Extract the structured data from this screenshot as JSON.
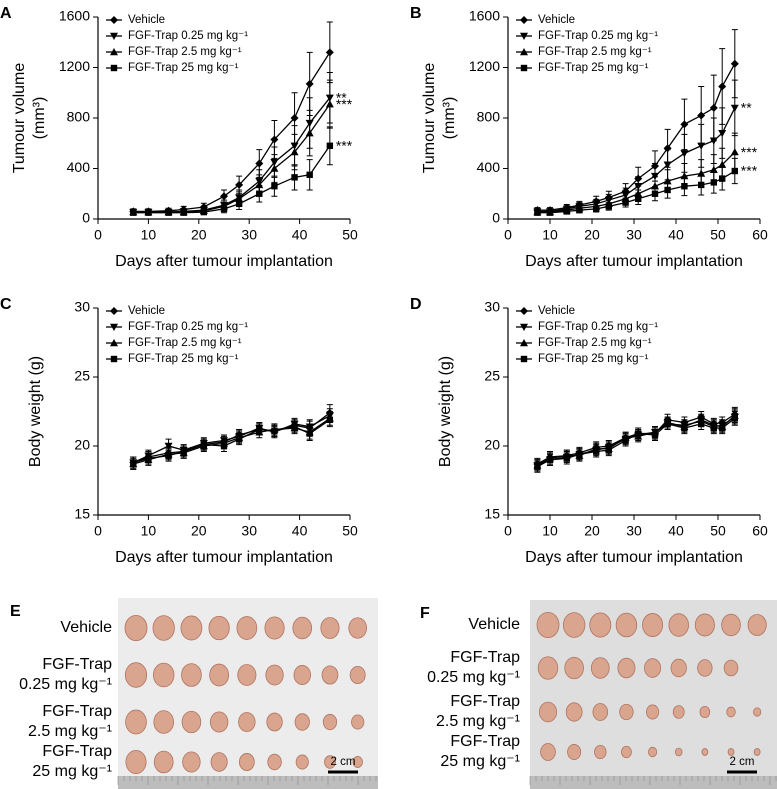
{
  "chart_data": [
    {
      "type": "line",
      "label": "A",
      "xlabel": "Days after tumour implantation",
      "ylabel": [
        "Tumour volume",
        "(mm³)"
      ],
      "x": [
        7,
        10,
        14,
        17,
        21,
        25,
        28,
        32,
        35,
        39,
        42,
        46
      ],
      "xlim": [
        0,
        50
      ],
      "xticks": [
        0,
        10,
        20,
        30,
        40,
        50
      ],
      "ylim": [
        0,
        1600
      ],
      "yticks": [
        0,
        400,
        800,
        1200,
        1600
      ],
      "series": [
        {
          "name": "Vehicle",
          "marker": "diamond",
          "color": "#000000",
          "values": [
            60,
            60,
            65,
            75,
            95,
            180,
            270,
            440,
            630,
            800,
            1070,
            1320
          ],
          "errors": [
            20,
            20,
            20,
            25,
            30,
            50,
            70,
            110,
            150,
            200,
            250,
            240
          ]
        },
        {
          "name": "FGF-Trap 0.25 mg kg⁻¹",
          "marker": "triangle-down",
          "color": "#000000",
          "values": [
            55,
            55,
            55,
            60,
            70,
            110,
            170,
            300,
            450,
            580,
            760,
            960
          ],
          "errors": [
            15,
            15,
            15,
            20,
            25,
            40,
            60,
            90,
            120,
            160,
            200,
            200
          ]
        },
        {
          "name": "FGF-Trap 2.5 mg kg⁻¹",
          "marker": "triangle-up",
          "color": "#000000",
          "values": [
            55,
            55,
            55,
            55,
            65,
            100,
            160,
            270,
            400,
            530,
            680,
            910
          ],
          "errors": [
            15,
            15,
            15,
            15,
            20,
            35,
            55,
            80,
            110,
            140,
            180,
            190
          ]
        },
        {
          "name": "FGF-Trap 25 mg kg⁻¹",
          "marker": "square",
          "color": "#000000",
          "values": [
            50,
            50,
            50,
            50,
            55,
            80,
            120,
            200,
            260,
            330,
            350,
            580
          ],
          "errors": [
            15,
            15,
            15,
            15,
            20,
            30,
            45,
            65,
            80,
            100,
            120,
            150
          ]
        }
      ],
      "end_labels": [
        null,
        "**",
        "***",
        "***"
      ]
    },
    {
      "type": "line",
      "label": "B",
      "xlabel": "Days after tumour implantation",
      "ylabel": [
        "Tumour volume",
        "(mm³)"
      ],
      "x": [
        7,
        10,
        14,
        17,
        21,
        24,
        28,
        31,
        35,
        38,
        42,
        46,
        49,
        51,
        54
      ],
      "xlim": [
        0,
        60
      ],
      "xticks": [
        0,
        10,
        20,
        30,
        40,
        50,
        60
      ],
      "ylim": [
        0,
        1600
      ],
      "yticks": [
        0,
        400,
        800,
        1200,
        1600
      ],
      "series": [
        {
          "name": "Vehicle",
          "marker": "diamond",
          "color": "#000000",
          "values": [
            70,
            70,
            90,
            110,
            140,
            170,
            220,
            320,
            420,
            560,
            750,
            820,
            880,
            1050,
            1230
          ],
          "errors": [
            20,
            20,
            25,
            30,
            40,
            50,
            60,
            90,
            120,
            150,
            200,
            230,
            260,
            300,
            270
          ]
        },
        {
          "name": "FGF-Trap 0.25 mg kg⁻¹",
          "marker": "triangle-down",
          "color": "#000000",
          "values": [
            60,
            60,
            80,
            100,
            120,
            150,
            190,
            260,
            340,
            430,
            520,
            580,
            620,
            680,
            880
          ],
          "errors": [
            20,
            20,
            25,
            30,
            35,
            45,
            55,
            75,
            100,
            120,
            150,
            170,
            180,
            200,
            220
          ]
        },
        {
          "name": "FGF-Trap 2.5 mg kg⁻¹",
          "marker": "triangle-up",
          "color": "#000000",
          "values": [
            55,
            55,
            70,
            85,
            100,
            120,
            160,
            200,
            260,
            300,
            340,
            360,
            390,
            430,
            530
          ],
          "errors": [
            15,
            15,
            20,
            25,
            30,
            35,
            45,
            60,
            75,
            90,
            100,
            110,
            120,
            130,
            150
          ]
        },
        {
          "name": "FGF-Trap 25 mg kg⁻¹",
          "marker": "square",
          "color": "#000000",
          "values": [
            50,
            50,
            60,
            70,
            80,
            100,
            130,
            160,
            200,
            230,
            260,
            270,
            290,
            320,
            380
          ],
          "errors": [
            15,
            15,
            20,
            20,
            25,
            30,
            35,
            45,
            55,
            65,
            75,
            80,
            85,
            90,
            100
          ]
        }
      ],
      "end_labels": [
        null,
        "**",
        "***",
        "***"
      ]
    },
    {
      "type": "line",
      "label": "C",
      "xlabel": "Days after tumour implantation",
      "ylabel": "Body weight (g)",
      "x": [
        7,
        10,
        14,
        17,
        21,
        25,
        28,
        32,
        35,
        39,
        42,
        46
      ],
      "xlim": [
        0,
        50
      ],
      "xticks": [
        0,
        10,
        20,
        30,
        40,
        50
      ],
      "ylim": [
        15,
        30
      ],
      "yticks": [
        15,
        20,
        25,
        30
      ],
      "series": [
        {
          "name": "Vehicle",
          "marker": "diamond",
          "color": "#000000",
          "values": [
            18.8,
            19.2,
            19.5,
            19.6,
            20.1,
            20.3,
            20.8,
            21.2,
            21.1,
            21.5,
            21.3,
            22.4
          ],
          "errors": [
            0.4,
            0.4,
            0.4,
            0.4,
            0.4,
            0.4,
            0.4,
            0.4,
            0.4,
            0.4,
            0.5,
            0.6
          ]
        },
        {
          "name": "FGF-Trap 0.25 mg kg⁻¹",
          "marker": "triangle-down",
          "color": "#000000",
          "values": [
            18.8,
            19.3,
            20.0,
            19.7,
            20.2,
            20.4,
            20.7,
            21.3,
            21.0,
            21.6,
            21.4,
            22.2
          ],
          "errors": [
            0.4,
            0.4,
            0.5,
            0.4,
            0.4,
            0.4,
            0.4,
            0.4,
            0.4,
            0.4,
            0.5,
            0.5
          ]
        },
        {
          "name": "FGF-Trap 2.5 mg kg⁻¹",
          "marker": "triangle-up",
          "color": "#000000",
          "values": [
            18.7,
            19.0,
            19.4,
            19.5,
            20.0,
            20.2,
            20.6,
            21.0,
            21.2,
            21.3,
            21.0,
            22.0
          ],
          "errors": [
            0.4,
            0.4,
            0.4,
            0.4,
            0.4,
            0.4,
            0.4,
            0.4,
            0.4,
            0.4,
            0.5,
            0.5
          ]
        },
        {
          "name": "FGF-Trap 25 mg kg⁻¹",
          "marker": "square",
          "color": "#000000",
          "values": [
            18.8,
            19.1,
            19.3,
            19.6,
            20.1,
            20.0,
            20.5,
            21.2,
            21.1,
            21.4,
            20.9,
            21.9
          ],
          "errors": [
            0.4,
            0.4,
            0.4,
            0.4,
            0.4,
            0.4,
            0.4,
            0.4,
            0.4,
            0.4,
            0.5,
            0.5
          ]
        }
      ]
    },
    {
      "type": "line",
      "label": "D",
      "xlabel": "Days after tumour implantation",
      "ylabel": "Body weight (g)",
      "x": [
        7,
        10,
        14,
        17,
        21,
        24,
        28,
        31,
        35,
        38,
        42,
        46,
        49,
        51,
        54
      ],
      "xlim": [
        0,
        60
      ],
      "xticks": [
        0,
        10,
        20,
        30,
        40,
        50,
        60
      ],
      "ylim": [
        15,
        30
      ],
      "yticks": [
        15,
        20,
        25,
        30
      ],
      "series": [
        {
          "name": "Vehicle",
          "marker": "diamond",
          "color": "#000000",
          "values": [
            18.7,
            19.2,
            19.3,
            19.5,
            19.9,
            20.0,
            20.6,
            20.9,
            20.9,
            21.9,
            21.7,
            22.1,
            21.6,
            21.7,
            22.3
          ],
          "errors": [
            0.4,
            0.4,
            0.4,
            0.4,
            0.4,
            0.4,
            0.4,
            0.4,
            0.4,
            0.4,
            0.4,
            0.4,
            0.4,
            0.4,
            0.5
          ]
        },
        {
          "name": "FGF-Trap 0.25 mg kg⁻¹",
          "marker": "triangle-down",
          "color": "#000000",
          "values": [
            18.6,
            19.0,
            19.2,
            19.4,
            19.7,
            19.9,
            20.5,
            20.8,
            21.0,
            21.6,
            21.5,
            21.8,
            21.4,
            21.5,
            22.1
          ],
          "errors": [
            0.4,
            0.4,
            0.4,
            0.4,
            0.4,
            0.4,
            0.4,
            0.4,
            0.4,
            0.4,
            0.4,
            0.4,
            0.4,
            0.4,
            0.5
          ]
        },
        {
          "name": "FGF-Trap 2.5 mg kg⁻¹",
          "marker": "triangle-up",
          "color": "#000000",
          "values": [
            18.6,
            19.1,
            19.3,
            19.3,
            19.8,
            19.8,
            20.6,
            20.7,
            21.0,
            21.7,
            21.4,
            21.9,
            21.5,
            21.4,
            22.2
          ],
          "errors": [
            0.4,
            0.4,
            0.4,
            0.4,
            0.4,
            0.4,
            0.4,
            0.4,
            0.4,
            0.4,
            0.4,
            0.4,
            0.4,
            0.4,
            0.5
          ]
        },
        {
          "name": "FGF-Trap 25 mg kg⁻¹",
          "marker": "square",
          "color": "#000000",
          "values": [
            18.5,
            19.0,
            19.1,
            19.4,
            19.6,
            19.7,
            20.4,
            20.9,
            20.8,
            21.6,
            21.3,
            21.6,
            21.3,
            21.3,
            22.0
          ],
          "errors": [
            0.4,
            0.4,
            0.4,
            0.4,
            0.4,
            0.4,
            0.4,
            0.4,
            0.4,
            0.4,
            0.4,
            0.4,
            0.4,
            0.4,
            0.5
          ]
        }
      ]
    }
  ],
  "photo_panels": [
    {
      "label": "E",
      "rows": [
        [
          "Vehicle"
        ],
        [
          "FGF-Trap",
          "0.25 mg kg⁻¹"
        ],
        [
          "FGF-Trap",
          "2.5 mg kg⁻¹"
        ],
        [
          "FGF-Trap",
          "25 mg kg⁻¹"
        ]
      ],
      "scale_bar": "2 cm"
    },
    {
      "label": "F",
      "rows": [
        [
          "Vehicle"
        ],
        [
          "FGF-Trap",
          "0.25 mg kg⁻¹"
        ],
        [
          "FGF-Trap",
          "2.5 mg kg⁻¹"
        ],
        [
          "FGF-Trap",
          "25 mg kg⁻¹"
        ]
      ],
      "scale_bar": "2 cm"
    }
  ]
}
